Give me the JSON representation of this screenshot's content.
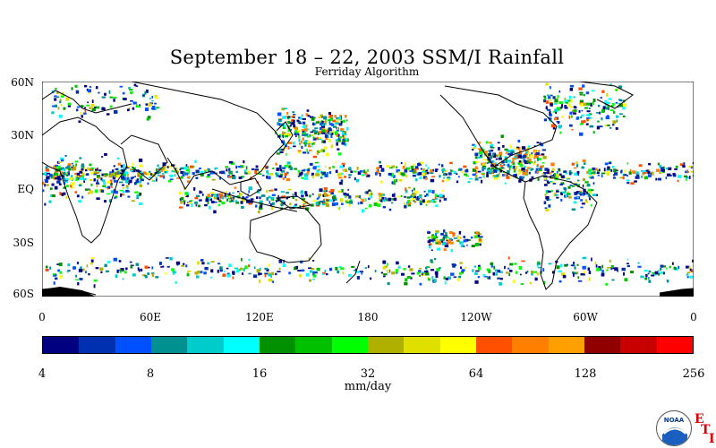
{
  "title": "September 18 – 22, 2003 SSM/I Rainfall",
  "subtitle": "Ferriday Algorithm",
  "lat_labels": [
    "60N",
    "30N",
    "EQ",
    "30S",
    "60S"
  ],
  "lon_labels": [
    "0",
    "60E",
    "120E",
    "180",
    "120W",
    "60W",
    "0"
  ],
  "colorbar": {
    "colors": [
      "#000080",
      "#0030b0",
      "#0050ff",
      "#009090",
      "#00cccc",
      "#00ffff",
      "#009000",
      "#00c000",
      "#00ff00",
      "#b0b000",
      "#e0e000",
      "#ffff00",
      "#ff5000",
      "#ff8000",
      "#ffa000",
      "#900000",
      "#c80000",
      "#ff0000"
    ],
    "tick_labels": [
      "4",
      "8",
      "16",
      "32",
      "64",
      "128",
      "256"
    ],
    "units": "mm/day"
  },
  "logo": {
    "text": "NOAA",
    "marks": [
      "E",
      "T",
      "I"
    ]
  },
  "icons": {
    "logo": "noaa-logo-icon"
  }
}
